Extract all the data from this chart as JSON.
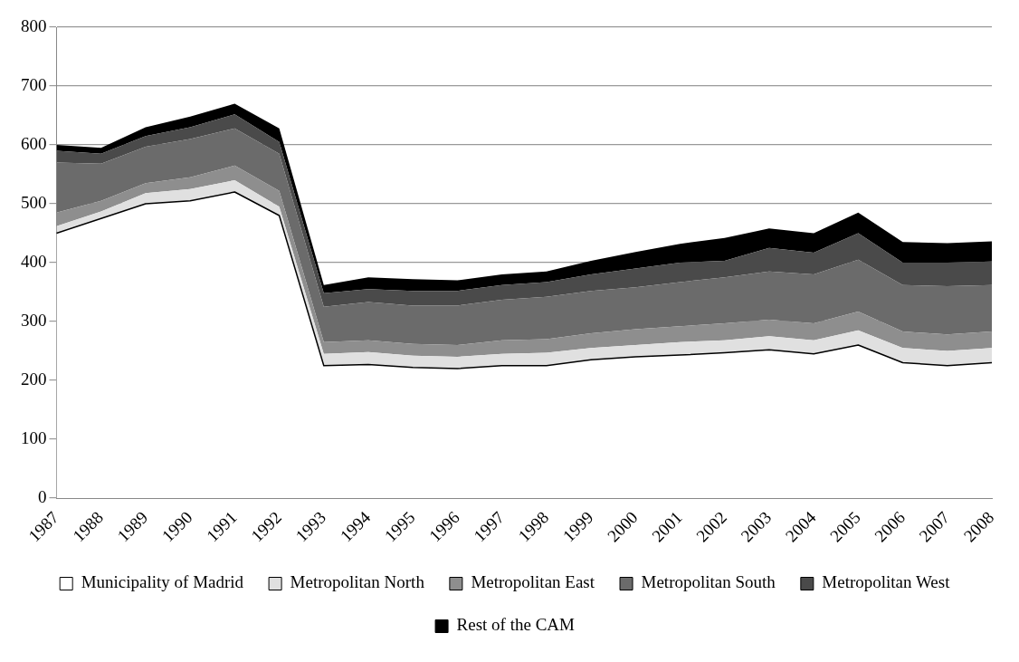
{
  "chart_data": {
    "type": "area",
    "stacked": true,
    "categories": [
      "1987",
      "1988",
      "1989",
      "1990",
      "1991",
      "1992",
      "1993",
      "1994",
      "1995",
      "1996",
      "1997",
      "1998",
      "1999",
      "2000",
      "2001",
      "2002",
      "2003",
      "2004",
      "2005",
      "2006",
      "2007",
      "2008"
    ],
    "series": [
      {
        "name": "Municipality of Madrid",
        "color": "#ffffff",
        "values": [
          450,
          475,
          500,
          505,
          520,
          480,
          225,
          227,
          222,
          220,
          225,
          225,
          235,
          240,
          243,
          247,
          252,
          245,
          260,
          230,
          225,
          230
        ]
      },
      {
        "name": "Metropolitan North",
        "color": "#e0e0e0",
        "values": [
          12,
          12,
          18,
          20,
          20,
          15,
          20,
          21,
          20,
          20,
          20,
          22,
          20,
          20,
          22,
          21,
          23,
          23,
          25,
          25,
          25,
          25
        ]
      },
      {
        "name": "Metropolitan East",
        "color": "#8e8e8e",
        "values": [
          23,
          18,
          17,
          20,
          25,
          27,
          20,
          20,
          20,
          20,
          23,
          23,
          25,
          27,
          27,
          29,
          28,
          29,
          32,
          28,
          28,
          28
        ]
      },
      {
        "name": "Metropolitan South",
        "color": "#6b6b6b",
        "values": [
          85,
          63,
          62,
          65,
          63,
          63,
          60,
          65,
          65,
          67,
          69,
          72,
          72,
          71,
          75,
          78,
          82,
          83,
          88,
          79,
          82,
          79
        ]
      },
      {
        "name": "Metropolitan West",
        "color": "#4a4a4a",
        "values": [
          20,
          17,
          18,
          20,
          24,
          20,
          23,
          22,
          25,
          25,
          25,
          25,
          28,
          32,
          33,
          28,
          40,
          37,
          45,
          38,
          40,
          40
        ]
      },
      {
        "name": "Rest of the CAM",
        "color": "#000000",
        "values": [
          10,
          10,
          15,
          18,
          18,
          23,
          14,
          20,
          20,
          18,
          18,
          18,
          23,
          28,
          32,
          39,
          33,
          33,
          35,
          35,
          33,
          34
        ]
      }
    ],
    "ylim": [
      0,
      800
    ],
    "yticks": [
      0,
      100,
      200,
      300,
      400,
      500,
      600,
      700,
      800
    ],
    "grid": "y",
    "legend": "bottom"
  }
}
